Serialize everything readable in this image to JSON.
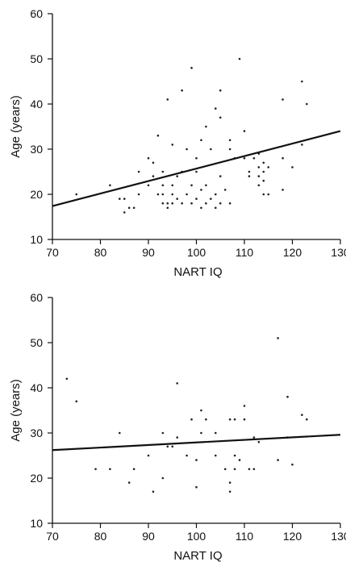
{
  "chart_data": [
    {
      "type": "scatter",
      "xlabel": "NART IQ",
      "ylabel": "Age (years)",
      "xlim": [
        70,
        130
      ],
      "ylim": [
        10,
        60
      ],
      "xticks": [
        70,
        80,
        90,
        100,
        110,
        120,
        130
      ],
      "yticks": [
        10,
        20,
        30,
        40,
        50,
        60
      ],
      "grid": false,
      "points": [
        [
          75,
          20
        ],
        [
          82,
          22
        ],
        [
          84,
          19
        ],
        [
          85,
          16
        ],
        [
          85,
          19
        ],
        [
          86,
          17
        ],
        [
          87,
          17
        ],
        [
          88,
          20
        ],
        [
          88,
          25
        ],
        [
          90,
          22
        ],
        [
          90,
          28
        ],
        [
          91,
          24
        ],
        [
          91,
          27
        ],
        [
          92,
          20
        ],
        [
          92,
          33
        ],
        [
          93,
          18
        ],
        [
          93,
          20
        ],
        [
          93,
          22
        ],
        [
          93,
          25
        ],
        [
          94,
          17
        ],
        [
          94,
          18
        ],
        [
          94,
          41
        ],
        [
          95,
          18
        ],
        [
          95,
          20
        ],
        [
          95,
          22
        ],
        [
          95,
          31
        ],
        [
          96,
          19
        ],
        [
          96,
          24
        ],
        [
          97,
          18
        ],
        [
          97,
          25
        ],
        [
          97,
          43
        ],
        [
          98,
          20
        ],
        [
          98,
          30
        ],
        [
          99,
          18
        ],
        [
          99,
          22
        ],
        [
          99,
          48
        ],
        [
          100,
          19
        ],
        [
          100,
          25
        ],
        [
          100,
          28
        ],
        [
          101,
          17
        ],
        [
          101,
          21
        ],
        [
          101,
          32
        ],
        [
          102,
          18
        ],
        [
          102,
          22
        ],
        [
          102,
          35
        ],
        [
          103,
          19
        ],
        [
          103,
          30
        ],
        [
          104,
          17
        ],
        [
          104,
          20
        ],
        [
          104,
          39
        ],
        [
          105,
          18
        ],
        [
          105,
          24
        ],
        [
          105,
          37
        ],
        [
          105,
          43
        ],
        [
          106,
          21
        ],
        [
          107,
          18
        ],
        [
          107,
          30
        ],
        [
          107,
          32
        ],
        [
          108,
          28
        ],
        [
          109,
          50
        ],
        [
          110,
          28
        ],
        [
          110,
          34
        ],
        [
          111,
          24
        ],
        [
          111,
          25
        ],
        [
          112,
          28
        ],
        [
          113,
          22
        ],
        [
          113,
          24
        ],
        [
          113,
          26
        ],
        [
          113,
          29
        ],
        [
          114,
          20
        ],
        [
          114,
          23
        ],
        [
          114,
          25
        ],
        [
          114,
          27
        ],
        [
          115,
          20
        ],
        [
          115,
          26
        ],
        [
          118,
          21
        ],
        [
          118,
          28
        ],
        [
          118,
          41
        ],
        [
          120,
          26
        ],
        [
          122,
          31
        ],
        [
          122,
          45
        ],
        [
          123,
          40
        ]
      ],
      "fit_line": {
        "x": [
          70,
          130
        ],
        "y": [
          17.4,
          34
        ]
      }
    },
    {
      "type": "scatter",
      "xlabel": "NART IQ",
      "ylabel": "Age (years)",
      "xlim": [
        70,
        130
      ],
      "ylim": [
        10,
        60
      ],
      "xticks": [
        70,
        80,
        90,
        100,
        110,
        120,
        130
      ],
      "yticks": [
        10,
        20,
        30,
        40,
        50,
        60
      ],
      "grid": false,
      "points": [
        [
          73,
          42
        ],
        [
          75,
          37
        ],
        [
          79,
          22
        ],
        [
          82,
          22
        ],
        [
          84,
          30
        ],
        [
          86,
          19
        ],
        [
          87,
          22
        ],
        [
          90,
          25
        ],
        [
          91,
          17
        ],
        [
          93,
          20
        ],
        [
          93,
          30
        ],
        [
          94,
          27
        ],
        [
          95,
          27
        ],
        [
          96,
          41
        ],
        [
          96,
          29
        ],
        [
          98,
          25
        ],
        [
          99,
          33
        ],
        [
          100,
          18
        ],
        [
          100,
          24
        ],
        [
          101,
          30
        ],
        [
          101,
          35
        ],
        [
          102,
          33
        ],
        [
          104,
          25
        ],
        [
          104,
          30
        ],
        [
          106,
          22
        ],
        [
          107,
          17
        ],
        [
          107,
          19
        ],
        [
          107,
          33
        ],
        [
          108,
          33
        ],
        [
          108,
          25
        ],
        [
          108,
          22
        ],
        [
          109,
          24
        ],
        [
          110,
          36
        ],
        [
          110,
          33
        ],
        [
          111,
          22
        ],
        [
          112,
          22
        ],
        [
          112,
          29
        ],
        [
          113,
          28
        ],
        [
          117,
          51
        ],
        [
          117,
          24
        ],
        [
          119,
          38
        ],
        [
          119,
          29
        ],
        [
          120,
          23
        ],
        [
          122,
          34
        ],
        [
          123,
          33
        ]
      ],
      "fit_line": {
        "x": [
          70,
          130
        ],
        "y": [
          26.2,
          29.6
        ]
      }
    }
  ]
}
